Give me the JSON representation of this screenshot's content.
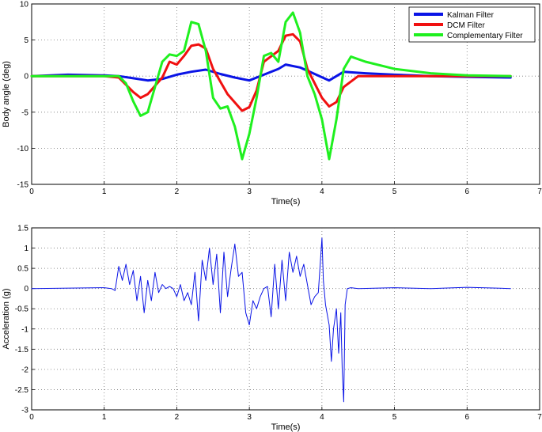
{
  "chart_data": [
    {
      "type": "line",
      "title": "",
      "xlabel": "Time(s)",
      "ylabel": "Body angle (deg)",
      "xlim": [
        0,
        7
      ],
      "ylim": [
        -15,
        10
      ],
      "xticks": [
        0,
        1,
        2,
        3,
        4,
        5,
        6,
        7
      ],
      "yticks": [
        -15,
        -10,
        -5,
        0,
        5,
        10
      ],
      "grid": true,
      "legend_position": "top-right",
      "series": [
        {
          "name": "Kalman Filter",
          "color": "#0a14e6",
          "x": [
            0,
            0.5,
            1.0,
            1.2,
            1.4,
            1.6,
            1.8,
            2.0,
            2.2,
            2.4,
            2.6,
            2.8,
            3.0,
            3.2,
            3.4,
            3.5,
            3.7,
            3.9,
            4.1,
            4.3,
            4.6,
            5.0,
            5.5,
            6.0,
            6.6
          ],
          "y": [
            0,
            0.2,
            0.1,
            0,
            -0.3,
            -0.6,
            -0.4,
            0.2,
            0.6,
            0.9,
            0.3,
            -0.2,
            -0.6,
            0.2,
            1.0,
            1.6,
            1.2,
            0.3,
            -0.6,
            0.6,
            0.4,
            0.2,
            0,
            -0.1,
            -0.2
          ]
        },
        {
          "name": "DCM Filter",
          "color": "#f01010",
          "x": [
            0,
            1.0,
            1.2,
            1.4,
            1.5,
            1.6,
            1.8,
            1.9,
            2.0,
            2.1,
            2.2,
            2.3,
            2.4,
            2.5,
            2.7,
            2.9,
            3.0,
            3.1,
            3.2,
            3.4,
            3.5,
            3.6,
            3.7,
            3.8,
            4.0,
            4.1,
            4.2,
            4.3,
            4.5,
            5.0,
            6.0,
            6.6
          ],
          "y": [
            0,
            0,
            -0.2,
            -2.2,
            -3.0,
            -2.5,
            -0.2,
            2.0,
            1.6,
            2.8,
            4.2,
            4.4,
            3.8,
            1.0,
            -2.5,
            -4.8,
            -4.3,
            -2.0,
            2.0,
            3.5,
            5.6,
            5.8,
            4.8,
            1.0,
            -3.0,
            -4.2,
            -3.6,
            -1.5,
            0,
            0,
            0,
            0
          ]
        },
        {
          "name": "Complementary Filter",
          "color": "#1ff01f",
          "x": [
            0,
            1.0,
            1.2,
            1.3,
            1.4,
            1.5,
            1.6,
            1.7,
            1.8,
            1.9,
            2.0,
            2.1,
            2.2,
            2.3,
            2.4,
            2.5,
            2.6,
            2.7,
            2.8,
            2.9,
            3.0,
            3.1,
            3.2,
            3.3,
            3.4,
            3.5,
            3.6,
            3.7,
            3.8,
            3.9,
            4.0,
            4.1,
            4.2,
            4.3,
            4.4,
            4.6,
            5.0,
            5.5,
            6.0,
            6.6
          ],
          "y": [
            0,
            0,
            0,
            -1.0,
            -3.5,
            -5.5,
            -5.0,
            -1.5,
            2.0,
            3.0,
            2.8,
            3.5,
            7.5,
            7.2,
            3.5,
            -3.0,
            -4.5,
            -4.2,
            -7.0,
            -11.5,
            -8.0,
            -3.0,
            2.8,
            3.2,
            2.0,
            7.5,
            8.8,
            6.0,
            0,
            -2.5,
            -6.0,
            -11.5,
            -6.0,
            1.0,
            2.7,
            2.0,
            1.0,
            0.4,
            0.1,
            0
          ]
        }
      ]
    },
    {
      "type": "line",
      "title": "",
      "xlabel": "Time(s)",
      "ylabel": "Acceleration (g)",
      "xlim": [
        0,
        7
      ],
      "ylim": [
        -3,
        1.5
      ],
      "xticks": [
        0,
        1,
        2,
        3,
        4,
        5,
        6,
        7
      ],
      "yticks": [
        -3,
        -2.5,
        -2,
        -1.5,
        -1,
        -0.5,
        0,
        0.5,
        1,
        1.5
      ],
      "grid": true,
      "series": [
        {
          "color": "#0a14e6",
          "x": [
            0,
            1.0,
            1.1,
            1.15,
            1.2,
            1.25,
            1.3,
            1.35,
            1.4,
            1.45,
            1.5,
            1.55,
            1.6,
            1.65,
            1.7,
            1.75,
            1.8,
            1.85,
            1.9,
            1.95,
            2.0,
            2.05,
            2.1,
            2.15,
            2.2,
            2.25,
            2.3,
            2.35,
            2.4,
            2.45,
            2.5,
            2.55,
            2.6,
            2.65,
            2.7,
            2.75,
            2.8,
            2.85,
            2.9,
            2.95,
            3.0,
            3.05,
            3.1,
            3.15,
            3.2,
            3.25,
            3.3,
            3.35,
            3.4,
            3.45,
            3.5,
            3.55,
            3.6,
            3.65,
            3.7,
            3.75,
            3.8,
            3.85,
            3.9,
            3.95,
            4.0,
            4.02,
            4.05,
            4.1,
            4.13,
            4.16,
            4.2,
            4.23,
            4.26,
            4.28,
            4.3,
            4.32,
            4.35,
            4.4,
            4.5,
            5.0,
            5.5,
            6.0,
            6.6
          ],
          "y": [
            0,
            0.02,
            0,
            -0.05,
            0.55,
            0.2,
            0.6,
            0.1,
            0.45,
            -0.3,
            0.3,
            -0.6,
            0.2,
            -0.3,
            0.4,
            -0.1,
            0.1,
            0.0,
            0.05,
            0.0,
            -0.2,
            0.1,
            -0.3,
            -0.1,
            -0.4,
            0.4,
            -0.8,
            0.7,
            0.2,
            1.0,
            0.1,
            0.85,
            -0.6,
            0.9,
            -0.2,
            0.5,
            1.1,
            0.3,
            0.4,
            -0.6,
            -0.9,
            -0.3,
            -0.5,
            -0.2,
            0,
            0.05,
            -0.7,
            0.6,
            -0.5,
            0.7,
            -0.3,
            0.9,
            0.4,
            0.8,
            0.3,
            0.6,
            0.1,
            -0.4,
            -0.2,
            -0.1,
            1.25,
            0.2,
            -0.4,
            -0.9,
            -1.8,
            -1.0,
            -0.5,
            -1.6,
            -0.6,
            -2.0,
            -2.8,
            -0.4,
            0,
            0.02,
            0,
            0.02,
            0,
            0.03,
            0
          ]
        }
      ]
    }
  ]
}
